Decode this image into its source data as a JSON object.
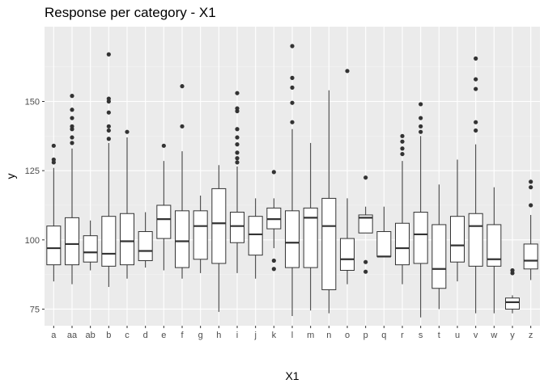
{
  "chart_data": {
    "type": "boxplot",
    "title": "Response per category - X1",
    "xlabel": "X1",
    "ylabel": "y",
    "ylim": [
      69,
      177
    ],
    "yticks": [
      75,
      100,
      125,
      150
    ],
    "grid": true,
    "categories": [
      "a",
      "aa",
      "ab",
      "b",
      "c",
      "d",
      "e",
      "f",
      "g",
      "h",
      "i",
      "j",
      "k",
      "l",
      "m",
      "n",
      "o",
      "p",
      "q",
      "r",
      "s",
      "t",
      "u",
      "v",
      "w",
      "y",
      "z"
    ],
    "boxes": [
      {
        "category": "a",
        "whisker_low": 85,
        "q1": 91,
        "median": 97,
        "q3": 105,
        "whisker_high": 126,
        "outliers": [
          128,
          129,
          134
        ]
      },
      {
        "category": "aa",
        "whisker_low": 84,
        "q1": 91,
        "median": 98.5,
        "q3": 108,
        "whisker_high": 133,
        "outliers": [
          135,
          137,
          140,
          141,
          144,
          147,
          152
        ]
      },
      {
        "category": "ab",
        "whisker_low": 89,
        "q1": 92,
        "median": 95.5,
        "q3": 101.5,
        "whisker_high": 107,
        "outliers": []
      },
      {
        "category": "b",
        "whisker_low": 83,
        "q1": 90.5,
        "median": 95,
        "q3": 108.5,
        "whisker_high": 135,
        "outliers": [
          136.5,
          139.5,
          141,
          146,
          150,
          151,
          167
        ]
      },
      {
        "category": "c",
        "whisker_low": 86,
        "q1": 91,
        "median": 99.5,
        "q3": 109.5,
        "whisker_high": 137,
        "outliers": [
          139
        ]
      },
      {
        "category": "d",
        "whisker_low": 90,
        "q1": 92.5,
        "median": 96,
        "q3": 103,
        "whisker_high": 110,
        "outliers": []
      },
      {
        "category": "e",
        "whisker_low": 89,
        "q1": 100.5,
        "median": 107.5,
        "q3": 112.5,
        "whisker_high": 128.5,
        "outliers": [
          134
        ]
      },
      {
        "category": "f",
        "whisker_low": 86,
        "q1": 90,
        "median": 99.5,
        "q3": 110.5,
        "whisker_high": 132,
        "outliers": [
          141,
          155.5
        ]
      },
      {
        "category": "g",
        "whisker_low": 88,
        "q1": 93,
        "median": 105,
        "q3": 110.5,
        "whisker_high": 116,
        "outliers": []
      },
      {
        "category": "h",
        "whisker_low": 74,
        "q1": 91.5,
        "median": 106,
        "q3": 118.5,
        "whisker_high": 127,
        "outliers": []
      },
      {
        "category": "i",
        "whisker_low": 88,
        "q1": 99,
        "median": 105,
        "q3": 110,
        "whisker_high": 126.5,
        "outliers": [
          128,
          129.5,
          131.5,
          134.5,
          137,
          140,
          146.5,
          147.5,
          153
        ]
      },
      {
        "category": "j",
        "whisker_low": 86,
        "q1": 94.5,
        "median": 102,
        "q3": 108.5,
        "whisker_high": 115,
        "outliers": []
      },
      {
        "category": "k",
        "whisker_low": 97,
        "q1": 104,
        "median": 107.5,
        "q3": 111.5,
        "whisker_high": 115,
        "outliers": [
          89.5,
          92.5,
          124.5
        ]
      },
      {
        "category": "l",
        "whisker_low": 72.5,
        "q1": 90,
        "median": 99,
        "q3": 110.5,
        "whisker_high": 140,
        "outliers": [
          142.5,
          149.5,
          155,
          158.5,
          170
        ]
      },
      {
        "category": "m",
        "whisker_low": 74.5,
        "q1": 90,
        "median": 108,
        "q3": 111.5,
        "whisker_high": 135,
        "outliers": []
      },
      {
        "category": "n",
        "whisker_low": 73.5,
        "q1": 82,
        "median": 105,
        "q3": 115,
        "whisker_high": 154,
        "outliers": []
      },
      {
        "category": "o",
        "whisker_low": 84,
        "q1": 89,
        "median": 93,
        "q3": 100.5,
        "whisker_high": 115,
        "outliers": [
          161
        ]
      },
      {
        "category": "p",
        "whisker_low": 102.5,
        "q1": 102.5,
        "median": 108,
        "q3": 109,
        "whisker_high": 112,
        "outliers": [
          88.5,
          92,
          122.5
        ]
      },
      {
        "category": "q",
        "whisker_low": 94,
        "q1": 94,
        "median": 94,
        "q3": 103,
        "whisker_high": 112,
        "outliers": []
      },
      {
        "category": "r",
        "whisker_low": 84,
        "q1": 91,
        "median": 97,
        "q3": 106,
        "whisker_high": 128.5,
        "outliers": [
          131,
          133,
          135.5,
          137.5
        ]
      },
      {
        "category": "s",
        "whisker_low": 72,
        "q1": 91.5,
        "median": 102,
        "q3": 110,
        "whisker_high": 137.5,
        "outliers": [
          139,
          141,
          144,
          149
        ]
      },
      {
        "category": "t",
        "whisker_low": 75,
        "q1": 82.5,
        "median": 89.5,
        "q3": 105.5,
        "whisker_high": 120,
        "outliers": []
      },
      {
        "category": "u",
        "whisker_low": 85,
        "q1": 92,
        "median": 98,
        "q3": 108.5,
        "whisker_high": 129,
        "outliers": []
      },
      {
        "category": "v",
        "whisker_low": 73.5,
        "q1": 90.5,
        "median": 105,
        "q3": 109.5,
        "whisker_high": 134.5,
        "outliers": [
          139.5,
          142.5,
          154.5,
          158,
          165.5
        ]
      },
      {
        "category": "w",
        "whisker_low": 73.5,
        "q1": 90.5,
        "median": 93,
        "q3": 105.5,
        "whisker_high": 119,
        "outliers": []
      },
      {
        "category": "y",
        "whisker_low": 73.5,
        "q1": 75,
        "median": 77.5,
        "q3": 79,
        "whisker_high": 80,
        "outliers": [
          88,
          89
        ]
      },
      {
        "category": "z",
        "whisker_low": 85.5,
        "q1": 89.5,
        "median": 92.5,
        "q3": 98.5,
        "whisker_high": 109,
        "outliers": [
          112.5,
          119,
          121
        ]
      }
    ]
  },
  "colors": {
    "panel_background": "#ebebeb",
    "grid_major": "#ffffff",
    "grid_minor": "#f4f4f4",
    "box_fill": "#ffffff",
    "box_stroke": "#333333",
    "outlier": "#333333",
    "axis_text": "#4d4d4d",
    "title_text": "#000000"
  }
}
